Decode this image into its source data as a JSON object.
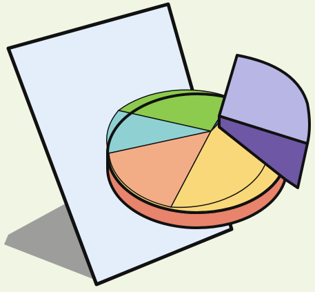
{
  "illustration": {
    "subject": "pie-chart-document-icon",
    "colors": {
      "background": "#f1f5e4",
      "page_fill": "#e4eefb",
      "page_shadow": "#8e8e8e",
      "outline": "#111111",
      "slice_green": "#8ccb4d",
      "slice_cyan": "#8fd1d3",
      "slice_orange": "#f3ad86",
      "slice_yellow": "#f9d87a",
      "slice_yellow_side": "#e8836c",
      "slice_blue": "#2f5d9a",
      "slice_exploded_top": "#b7b6e4",
      "slice_exploded_side": "#6e57a4"
    }
  }
}
